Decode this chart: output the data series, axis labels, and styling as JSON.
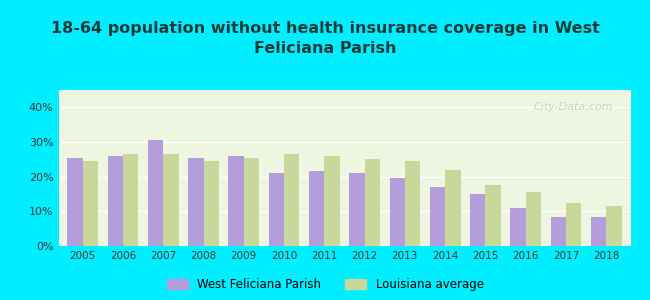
{
  "title": "18-64 population without health insurance coverage in West\nFeliciana Parish",
  "years": [
    2005,
    2006,
    2007,
    2008,
    2009,
    2010,
    2011,
    2012,
    2013,
    2014,
    2015,
    2016,
    2017,
    2018
  ],
  "parish_values": [
    25.5,
    26.0,
    30.5,
    25.5,
    26.0,
    21.0,
    21.5,
    21.0,
    19.5,
    17.0,
    15.0,
    11.0,
    8.5,
    8.5
  ],
  "louisiana_values": [
    24.5,
    26.5,
    26.5,
    24.5,
    25.5,
    26.5,
    26.0,
    25.0,
    24.5,
    22.0,
    17.5,
    15.5,
    12.5,
    11.5
  ],
  "parish_color": "#b39ddb",
  "louisiana_color": "#c8d89a",
  "background_outer": "#00eeff",
  "background_chart": "#eef5e0",
  "bar_width": 0.38,
  "ylim": [
    0,
    45
  ],
  "yticks": [
    0,
    10,
    20,
    30,
    40
  ],
  "ytick_labels": [
    "0%",
    "10%",
    "20%",
    "30%",
    "40%"
  ],
  "title_fontsize": 11.5,
  "legend_labels": [
    "West Feliciana Parish",
    "Louisiana average"
  ],
  "watermark": "City-Data.com"
}
